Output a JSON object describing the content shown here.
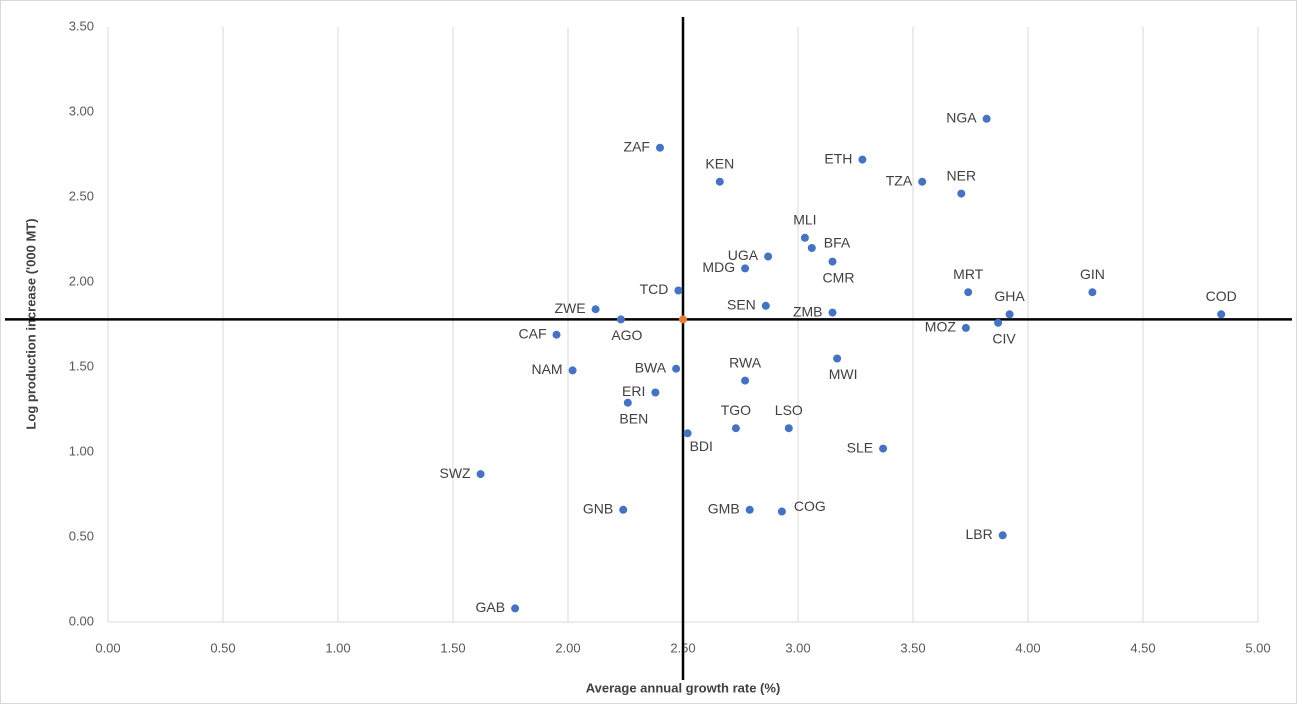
{
  "chart_data": {
    "type": "scatter",
    "x_label": "Average annual growth rate (%)",
    "y_label": "Log production  increase ('000 MT)",
    "color": "#4472c4",
    "labels": [
      "NGA",
      "ZAF",
      "ETH",
      "KEN",
      "TZA",
      "NER",
      "MLI",
      "BFA",
      "UGA",
      "MDG",
      "CMR",
      "TCD",
      "MRT",
      "GIN",
      "ZWE",
      "SEN",
      "ZMB",
      "GHA",
      "COD",
      "AGO",
      "MOZ",
      "CIV",
      "MWI",
      "NAM",
      "BWA",
      "RWA",
      "ERI",
      "BEN",
      "TGO",
      "LSO",
      "BDI",
      "SLE",
      "SWZ",
      "GNB",
      "GMB",
      "COG",
      "LBR",
      "GAB",
      "CAF"
    ],
    "x": [
      3.82,
      2.4,
      3.28,
      2.66,
      3.54,
      3.71,
      3.03,
      3.06,
      2.87,
      2.77,
      3.15,
      2.48,
      3.74,
      4.28,
      2.12,
      2.86,
      3.15,
      3.92,
      4.84,
      2.23,
      3.73,
      3.87,
      3.17,
      2.02,
      2.47,
      2.77,
      2.38,
      2.26,
      2.73,
      2.96,
      2.52,
      3.37,
      1.62,
      2.24,
      2.79,
      2.93,
      3.89,
      1.77,
      1.95
    ],
    "y": [
      2.96,
      2.79,
      2.72,
      2.59,
      2.59,
      2.52,
      2.26,
      2.2,
      2.15,
      2.08,
      2.12,
      1.95,
      1.94,
      1.94,
      1.84,
      1.86,
      1.82,
      1.81,
      1.81,
      1.78,
      1.73,
      1.76,
      1.55,
      1.48,
      1.49,
      1.42,
      1.35,
      1.29,
      1.14,
      1.14,
      1.11,
      1.02,
      0.87,
      0.66,
      0.66,
      0.65,
      0.51,
      0.08,
      1.69
    ],
    "reference_point": {
      "x": 2.5,
      "y": 1.78,
      "color": "#ed7d31"
    },
    "xlim": [
      0,
      5
    ],
    "ylim": [
      0,
      3.5
    ],
    "xticks": [
      {
        "value": 0,
        "label": "0.00"
      },
      {
        "value": 0.5,
        "label": "0.50"
      },
      {
        "value": 1,
        "label": "1.00"
      },
      {
        "value": 1.5,
        "label": "1.50"
      },
      {
        "value": 2,
        "label": "2.00"
      },
      {
        "value": 2.5,
        "label": "2.50"
      },
      {
        "value": 3,
        "label": "3.00"
      },
      {
        "value": 3.5,
        "label": "3.50"
      },
      {
        "value": 4,
        "label": "4.00"
      },
      {
        "value": 4.5,
        "label": "4.50"
      },
      {
        "value": 5,
        "label": "5.00"
      }
    ],
    "yticks": [
      {
        "value": 0,
        "label": "0.00"
      },
      {
        "value": 0.5,
        "label": "0.50"
      },
      {
        "value": 1,
        "label": "1.00"
      },
      {
        "value": 1.5,
        "label": "1.50"
      },
      {
        "value": 2,
        "label": "2.00"
      },
      {
        "value": 2.5,
        "label": "2.50"
      },
      {
        "value": 3,
        "label": "3.00"
      },
      {
        "value": 3.5,
        "label": "3.50"
      }
    ],
    "grid": "x"
  }
}
